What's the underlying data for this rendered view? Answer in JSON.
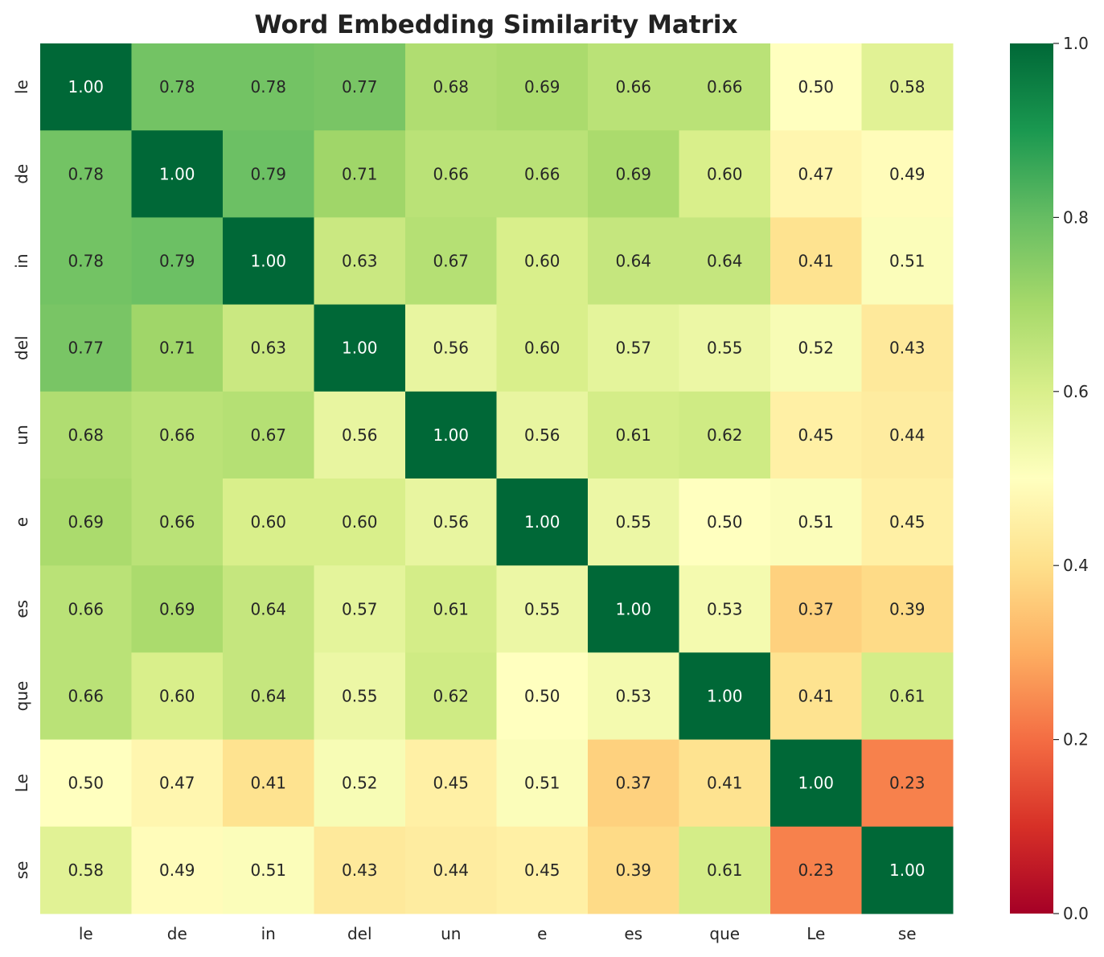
{
  "chart_data": {
    "type": "heatmap",
    "title": "Word Embedding Similarity Matrix",
    "xlabel": "",
    "ylabel": "",
    "x_labels": [
      "le",
      "de",
      "in",
      "del",
      "un",
      "e",
      "es",
      "que",
      "Le",
      "se"
    ],
    "y_labels": [
      "le",
      "de",
      "in",
      "del",
      "un",
      "e",
      "es",
      "que",
      "Le",
      "se"
    ],
    "values": [
      [
        1.0,
        0.78,
        0.78,
        0.77,
        0.68,
        0.69,
        0.66,
        0.66,
        0.5,
        0.58
      ],
      [
        0.78,
        1.0,
        0.79,
        0.71,
        0.66,
        0.66,
        0.69,
        0.6,
        0.47,
        0.49
      ],
      [
        0.78,
        0.79,
        1.0,
        0.63,
        0.67,
        0.6,
        0.64,
        0.64,
        0.41,
        0.51
      ],
      [
        0.77,
        0.71,
        0.63,
        1.0,
        0.56,
        0.6,
        0.57,
        0.55,
        0.52,
        0.43
      ],
      [
        0.68,
        0.66,
        0.67,
        0.56,
        1.0,
        0.56,
        0.61,
        0.62,
        0.45,
        0.44
      ],
      [
        0.69,
        0.66,
        0.6,
        0.6,
        0.56,
        1.0,
        0.55,
        0.5,
        0.51,
        0.45
      ],
      [
        0.66,
        0.69,
        0.64,
        0.57,
        0.61,
        0.55,
        1.0,
        0.53,
        0.37,
        0.39
      ],
      [
        0.66,
        0.6,
        0.64,
        0.55,
        0.62,
        0.5,
        0.53,
        1.0,
        0.41,
        0.61
      ],
      [
        0.5,
        0.47,
        0.41,
        0.52,
        0.45,
        0.51,
        0.37,
        0.41,
        1.0,
        0.23
      ],
      [
        0.58,
        0.49,
        0.51,
        0.43,
        0.44,
        0.45,
        0.39,
        0.61,
        0.23,
        1.0
      ]
    ],
    "value_labels": [
      [
        "1.00",
        "0.78",
        "0.78",
        "0.77",
        "0.68",
        "0.69",
        "0.66",
        "0.66",
        "0.50",
        "0.58"
      ],
      [
        "0.78",
        "1.00",
        "0.79",
        "0.71",
        "0.66",
        "0.66",
        "0.69",
        "0.60",
        "0.47",
        "0.49"
      ],
      [
        "0.78",
        "0.79",
        "1.00",
        "0.63",
        "0.67",
        "0.60",
        "0.64",
        "0.64",
        "0.41",
        "0.51"
      ],
      [
        "0.77",
        "0.71",
        "0.63",
        "1.00",
        "0.56",
        "0.60",
        "0.57",
        "0.55",
        "0.52",
        "0.43"
      ],
      [
        "0.68",
        "0.66",
        "0.67",
        "0.56",
        "1.00",
        "0.56",
        "0.61",
        "0.62",
        "0.45",
        "0.44"
      ],
      [
        "0.69",
        "0.66",
        "0.60",
        "0.60",
        "0.56",
        "1.00",
        "0.55",
        "0.50",
        "0.51",
        "0.45"
      ],
      [
        "0.66",
        "0.69",
        "0.64",
        "0.57",
        "0.61",
        "0.55",
        "1.00",
        "0.53",
        "0.37",
        "0.39"
      ],
      [
        "0.66",
        "0.60",
        "0.64",
        "0.55",
        "0.62",
        "0.50",
        "0.53",
        "1.00",
        "0.41",
        "0.61"
      ],
      [
        "0.50",
        "0.47",
        "0.41",
        "0.52",
        "0.45",
        "0.51",
        "0.37",
        "0.41",
        "1.00",
        "0.23"
      ],
      [
        "0.58",
        "0.49",
        "0.51",
        "0.43",
        "0.44",
        "0.45",
        "0.39",
        "0.61",
        "0.23",
        "1.00"
      ]
    ],
    "colorbar": {
      "colormap": "RdYlGn",
      "range": [
        0.0,
        1.0
      ],
      "ticks": [
        0.0,
        0.2,
        0.4,
        0.6,
        0.8,
        1.0
      ],
      "tick_labels": [
        "0.0",
        "0.2",
        "0.4",
        "0.6",
        "0.8",
        "1.0"
      ],
      "placement": "right"
    },
    "grid": false,
    "legend": "none"
  }
}
